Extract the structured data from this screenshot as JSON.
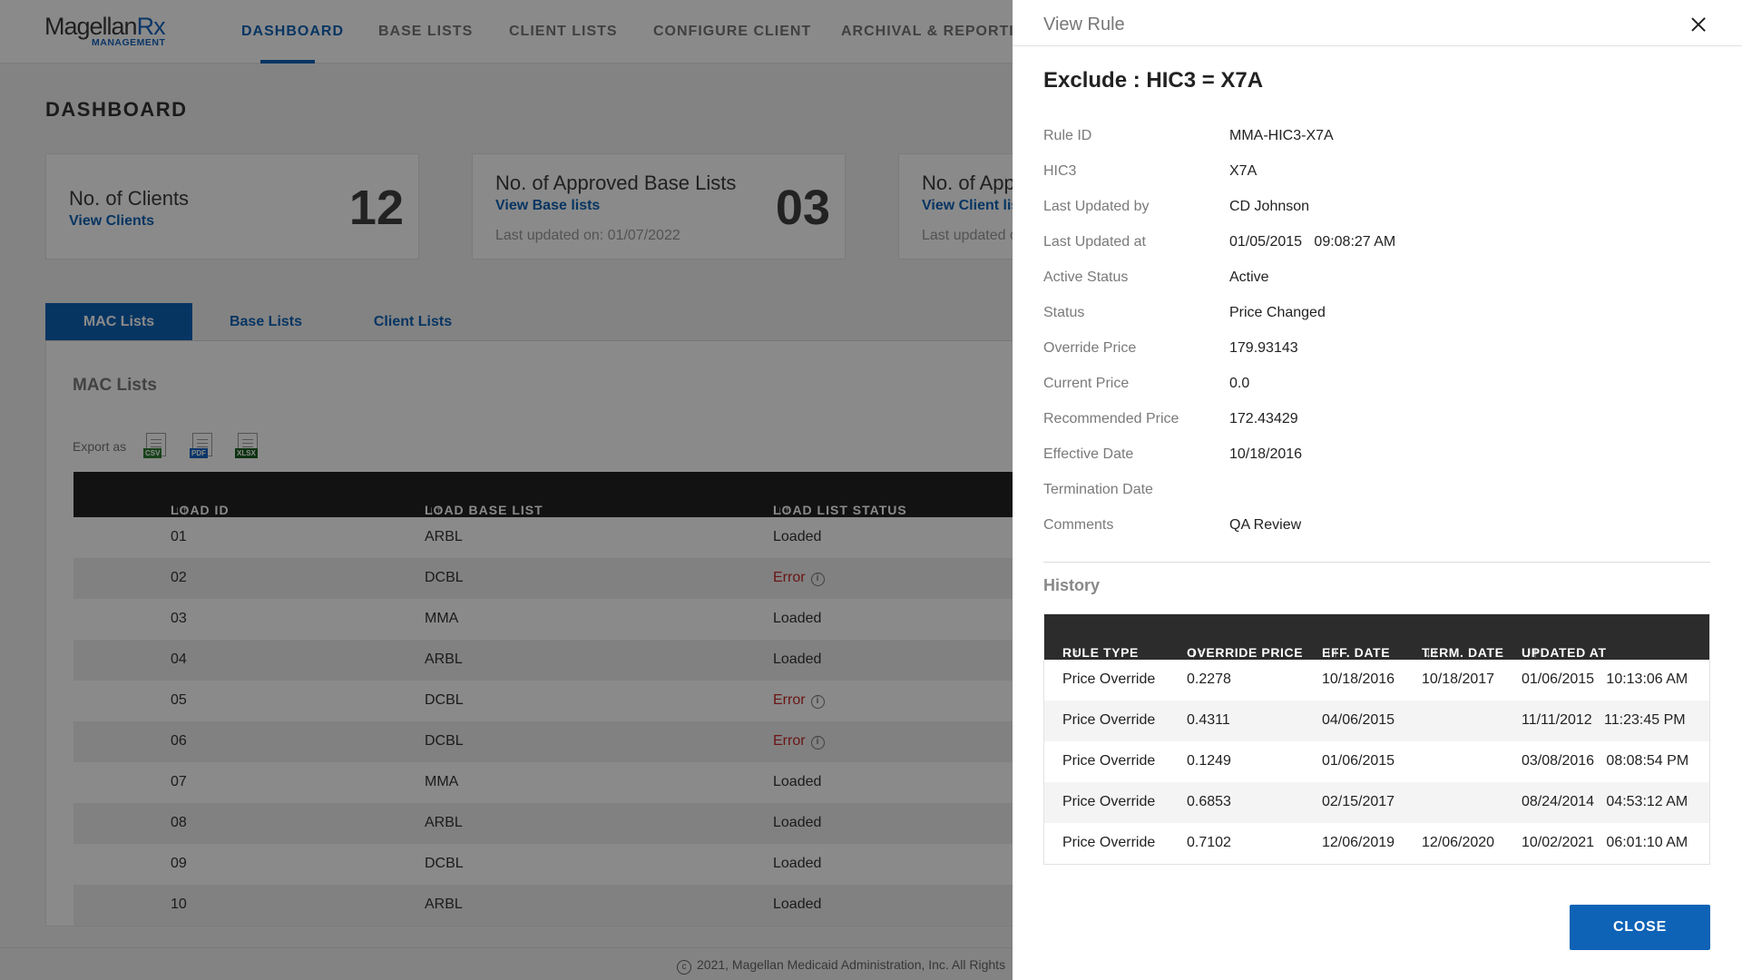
{
  "brand": {
    "name": "Magellan",
    "name_accent": "Rx",
    "sub": "MANAGEMENT"
  },
  "nav": {
    "items": [
      "DASHBOARD",
      "BASE LISTS",
      "CLIENT LISTS",
      "CONFIGURE CLIENT",
      "ARCHIVAL & REPORTING"
    ],
    "active": "DASHBOARD"
  },
  "page": {
    "title": "DASHBOARD"
  },
  "cards": [
    {
      "title": "No. of Clients",
      "link": "View Clients",
      "updated": "",
      "count": "12"
    },
    {
      "title": "No. of Approved Base Lists",
      "link": "View Base lists",
      "updated": "Last updated on: 01/07/2022",
      "count": "03"
    },
    {
      "title": "No. of App",
      "link": "View Client lis",
      "updated": "Last updated o",
      "count": ""
    }
  ],
  "tabs": [
    "MAC Lists",
    "Base Lists",
    "Client Lists"
  ],
  "panel": {
    "title": "MAC Lists",
    "export_label": "Export as",
    "export_formats": [
      "CSV",
      "PDF",
      "XLSX"
    ],
    "columns": [
      "LOAD ID",
      "LOAD BASE LIST",
      "LOAD LIST STATUS"
    ],
    "rows": [
      {
        "id": "01",
        "base": "ARBL",
        "status": "Loaded",
        "error": false
      },
      {
        "id": "02",
        "base": "DCBL",
        "status": "Error",
        "error": true
      },
      {
        "id": "03",
        "base": "MMA",
        "status": "Loaded",
        "error": false
      },
      {
        "id": "04",
        "base": "ARBL",
        "status": "Loaded",
        "error": false
      },
      {
        "id": "05",
        "base": "DCBL",
        "status": "Error",
        "error": true
      },
      {
        "id": "06",
        "base": "DCBL",
        "status": "Error",
        "error": true
      },
      {
        "id": "07",
        "base": "MMA",
        "status": "Loaded",
        "error": false
      },
      {
        "id": "08",
        "base": "ARBL",
        "status": "Loaded",
        "error": false
      },
      {
        "id": "09",
        "base": "DCBL",
        "status": "Loaded",
        "error": false
      },
      {
        "id": "10",
        "base": "ARBL",
        "status": "Loaded",
        "error": false
      }
    ]
  },
  "footer": {
    "copyright_symbol": "c",
    "text": "2021, Magellan Medicaid Administration, Inc. All Rights"
  },
  "drawer": {
    "title": "View Rule",
    "heading": "Exclude : HIC3 = X7A",
    "fields": [
      {
        "label": "Rule ID",
        "value": "MMA-HIC3-X7A"
      },
      {
        "label": "HIC3",
        "value": "X7A"
      },
      {
        "label": "Last Updated by",
        "value": "CD Johnson"
      },
      {
        "label": "Last Updated at",
        "value": "01/05/2015   09:08:27 AM"
      },
      {
        "label": "Active Status",
        "value": "Active"
      },
      {
        "label": "Status",
        "value": "Price Changed"
      },
      {
        "label": "Override Price",
        "value": "179.93143"
      },
      {
        "label": "Current Price",
        "value": "0.0"
      },
      {
        "label": "Recommended Price",
        "value": "172.43429"
      },
      {
        "label": "Effective Date",
        "value": "10/18/2016"
      },
      {
        "label": "Termination Date",
        "value": ""
      },
      {
        "label": "Comments",
        "value": "QA Review"
      }
    ],
    "history": {
      "title": "History",
      "columns": [
        "RULE TYPE",
        "OVERRIDE PRICE",
        "EFF. DATE",
        "TERM. DATE",
        "UPDATED AT"
      ],
      "rows": [
        {
          "type": "Price Override",
          "price": "0.2278",
          "eff": "10/18/2016",
          "term": "10/18/2017",
          "updated": "01/06/2015   10:13:06 AM"
        },
        {
          "type": "Price Override",
          "price": "0.4311",
          "eff": "04/06/2015",
          "term": "",
          "updated": "11/11/2012   11:23:45 PM"
        },
        {
          "type": "Price Override",
          "price": "0.1249",
          "eff": "01/06/2015",
          "term": "",
          "updated": "03/08/2016   08:08:54 PM"
        },
        {
          "type": "Price Override",
          "price": "0.6853",
          "eff": "02/15/2017",
          "term": "",
          "updated": "08/24/2014   04:53:12 AM"
        },
        {
          "type": "Price Override",
          "price": "0.7102",
          "eff": "12/06/2019",
          "term": "12/06/2020",
          "updated": "10/02/2021   06:01:10 AM"
        }
      ]
    },
    "close_label": "CLOSE"
  },
  "colors": {
    "primary": "#0e63b6",
    "error": "#c62828",
    "header_dark": "#222222",
    "overlay": "rgba(0,0,0,0.46)"
  },
  "icons": {
    "close": "close-icon",
    "sort": "sort-icon",
    "info": "info-icon",
    "csv": "csv-file-icon",
    "pdf": "pdf-file-icon",
    "xlsx": "xlsx-file-icon"
  }
}
